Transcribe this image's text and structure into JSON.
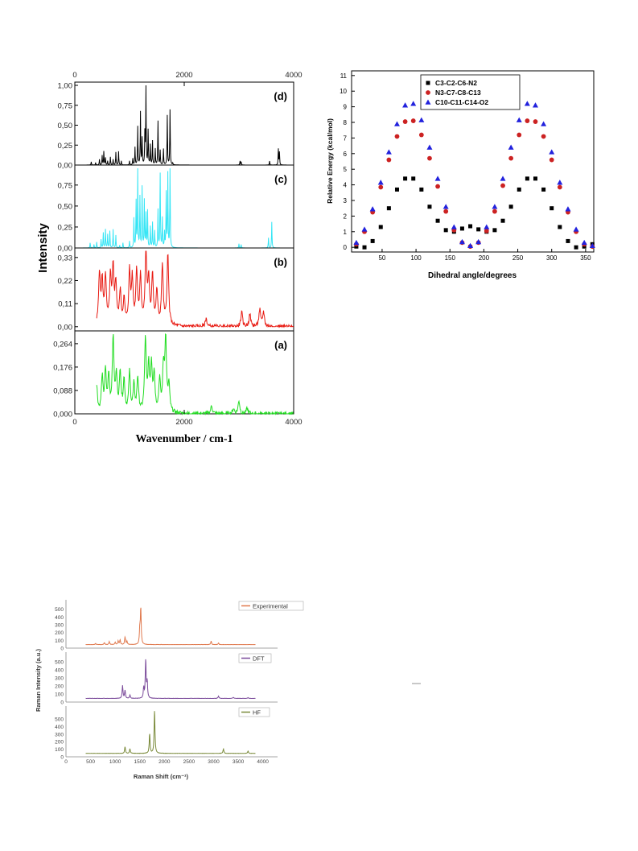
{
  "chart_data": [
    {
      "type": "line",
      "ylabel": "Intensity",
      "xlabel": "Wavenumber / cm-1",
      "xlim": [
        0,
        4000
      ],
      "x_ticks": [
        "0",
        "2000",
        "4000"
      ],
      "top_x_ticks": [
        "0",
        "2000",
        "4000"
      ],
      "panels": [
        {
          "label": "(d)",
          "color": "#000000",
          "ylim": [
            0,
            1.0
          ],
          "y_ticks": [
            "0,00",
            "0,25",
            "0,50",
            "0,75",
            "1,00"
          ],
          "peaks": [
            [
              300,
              0.04
            ],
            [
              380,
              0.03
            ],
            [
              450,
              0.07
            ],
            [
              500,
              0.12
            ],
            [
              530,
              0.17
            ],
            [
              560,
              0.09
            ],
            [
              600,
              0.05
            ],
            [
              650,
              0.1
            ],
            [
              700,
              0.07
            ],
            [
              750,
              0.16
            ],
            [
              800,
              0.17
            ],
            [
              850,
              0.05
            ],
            [
              1000,
              0.05
            ],
            [
              1060,
              0.08
            ],
            [
              1100,
              0.22
            ],
            [
              1150,
              0.48
            ],
            [
              1200,
              0.66
            ],
            [
              1230,
              0.33
            ],
            [
              1280,
              0.39
            ],
            [
              1300,
              1.0
            ],
            [
              1340,
              0.43
            ],
            [
              1380,
              0.25
            ],
            [
              1420,
              0.3
            ],
            [
              1470,
              0.2
            ],
            [
              1520,
              0.55
            ],
            [
              1560,
              0.18
            ],
            [
              1620,
              0.2
            ],
            [
              1690,
              0.62
            ],
            [
              1740,
              0.69
            ],
            [
              1790,
              0.02
            ],
            [
              3020,
              0.05
            ],
            [
              3040,
              0.04
            ],
            [
              3560,
              0.05
            ],
            [
              3720,
              0.2
            ],
            [
              3740,
              0.16
            ]
          ]
        },
        {
          "label": "(c)",
          "color": "#33e5f5",
          "ylim": [
            0,
            0.95
          ],
          "y_ticks": [
            "0,00",
            "0,25",
            "0,50",
            "0,75"
          ],
          "peaks": [
            [
              280,
              0.06
            ],
            [
              350,
              0.04
            ],
            [
              400,
              0.07
            ],
            [
              480,
              0.1
            ],
            [
              520,
              0.18
            ],
            [
              560,
              0.22
            ],
            [
              600,
              0.16
            ],
            [
              640,
              0.2
            ],
            [
              700,
              0.22
            ],
            [
              750,
              0.15
            ],
            [
              820,
              0.03
            ],
            [
              880,
              0.06
            ],
            [
              1000,
              0.08
            ],
            [
              1080,
              0.35
            ],
            [
              1120,
              0.55
            ],
            [
              1150,
              0.93
            ],
            [
              1190,
              0.6
            ],
            [
              1230,
              0.72
            ],
            [
              1270,
              0.56
            ],
            [
              1300,
              0.4
            ],
            [
              1330,
              0.44
            ],
            [
              1380,
              0.25
            ],
            [
              1420,
              0.3
            ],
            [
              1460,
              0.2
            ],
            [
              1520,
              0.45
            ],
            [
              1560,
              0.88
            ],
            [
              1600,
              0.35
            ],
            [
              1640,
              0.18
            ],
            [
              1670,
              0.65
            ],
            [
              1700,
              0.88
            ],
            [
              1740,
              0.93
            ],
            [
              3000,
              0.05
            ],
            [
              3040,
              0.04
            ],
            [
              3540,
              0.12
            ],
            [
              3600,
              0.31
            ]
          ]
        },
        {
          "label": "(b)",
          "color": "#e81a12",
          "ylim": [
            -0.02,
            0.36
          ],
          "y_ticks": [
            "0,00",
            "0,11",
            "0,22",
            "0,33"
          ],
          "peaks": [
            [
              450,
              0.25
            ],
            [
              500,
              0.2
            ],
            [
              560,
              0.23
            ],
            [
              650,
              0.22
            ],
            [
              700,
              0.26
            ],
            [
              750,
              0.19
            ],
            [
              830,
              0.16
            ],
            [
              900,
              0.12
            ],
            [
              1000,
              0.25
            ],
            [
              1050,
              0.21
            ],
            [
              1130,
              0.26
            ],
            [
              1200,
              0.23
            ],
            [
              1300,
              0.35
            ],
            [
              1350,
              0.2
            ],
            [
              1420,
              0.24
            ],
            [
              1500,
              0.16
            ],
            [
              1600,
              0.29
            ],
            [
              1700,
              0.34
            ],
            [
              2400,
              0.04
            ],
            [
              3050,
              0.07
            ],
            [
              3200,
              0.06
            ],
            [
              3380,
              0.08
            ],
            [
              3450,
              0.07
            ]
          ],
          "baseline_tail": 0.0
        },
        {
          "label": "(a)",
          "color": "#22dd22",
          "ylim": [
            0,
            0.3
          ],
          "y_ticks": [
            "0,000",
            "0,088",
            "0,176",
            "0,264"
          ],
          "peaks": [
            [
              400,
              0.1
            ],
            [
              500,
              0.13
            ],
            [
              560,
              0.15
            ],
            [
              620,
              0.13
            ],
            [
              700,
              0.28
            ],
            [
              760,
              0.13
            ],
            [
              830,
              0.15
            ],
            [
              900,
              0.12
            ],
            [
              1000,
              0.15
            ],
            [
              1080,
              0.1
            ],
            [
              1150,
              0.13
            ],
            [
              1290,
              0.27
            ],
            [
              1350,
              0.16
            ],
            [
              1400,
              0.17
            ],
            [
              1450,
              0.14
            ],
            [
              1550,
              0.12
            ],
            [
              1620,
              0.16
            ],
            [
              1660,
              0.27
            ],
            [
              1720,
              0.1
            ],
            [
              2500,
              0.03
            ],
            [
              2900,
              0.02
            ],
            [
              3000,
              0.05
            ],
            [
              3150,
              0.02
            ]
          ]
        }
      ]
    },
    {
      "type": "scatter",
      "ylabel": "Relative Energy (kcal/mol)",
      "xlabel": "Dihedral angle/degrees",
      "xlim": [
        5,
        362
      ],
      "ylim": [
        -0.3,
        11.3
      ],
      "x_ticks": [
        50,
        100,
        150,
        200,
        250,
        300,
        350
      ],
      "y_ticks": [
        0,
        1,
        2,
        3,
        4,
        5,
        6,
        7,
        8,
        9,
        10,
        11
      ],
      "series": [
        {
          "name": "C3-C2-C6-N2",
          "marker": "square",
          "color": "#000000",
          "x": [
            12,
            24,
            36,
            48,
            60,
            72,
            84,
            96,
            108,
            120,
            132,
            144,
            156,
            168,
            180,
            192,
            204,
            216,
            228,
            240,
            252,
            264,
            276,
            288,
            300,
            312,
            324,
            336,
            348,
            360
          ],
          "y": [
            0.05,
            0.0,
            0.4,
            1.3,
            2.5,
            3.7,
            4.4,
            4.4,
            3.7,
            2.6,
            1.7,
            1.1,
            1.0,
            1.2,
            1.35,
            1.15,
            1.0,
            1.1,
            1.7,
            2.6,
            3.7,
            4.4,
            4.4,
            3.7,
            2.5,
            1.3,
            0.4,
            0.0,
            0.05,
            0.2
          ]
        },
        {
          "name": "N3-C7-C8-C13",
          "marker": "circle",
          "color": "#cc2222",
          "x": [
            12,
            24,
            36,
            48,
            60,
            72,
            84,
            96,
            108,
            120,
            132,
            144,
            156,
            168,
            180,
            192,
            204,
            216,
            228,
            240,
            252,
            264,
            276,
            288,
            300,
            312,
            324,
            336,
            348,
            360
          ],
          "y": [
            0.2,
            1.0,
            2.25,
            3.85,
            5.6,
            7.1,
            8.05,
            8.1,
            7.2,
            5.7,
            3.9,
            2.3,
            1.1,
            0.3,
            0.05,
            0.3,
            1.05,
            2.3,
            3.95,
            5.7,
            7.2,
            8.1,
            8.05,
            7.1,
            5.6,
            3.85,
            2.25,
            1.0,
            0.2,
            0.05
          ]
        },
        {
          "name": "C10-C11-C14-O2",
          "marker": "triangle",
          "color": "#2222dd",
          "x": [
            12,
            24,
            36,
            48,
            60,
            72,
            84,
            96,
            108,
            120,
            132,
            144,
            156,
            168,
            180,
            192,
            204,
            216,
            228,
            240,
            252,
            264,
            276,
            288,
            300,
            312,
            324,
            336,
            348,
            360
          ],
          "y": [
            0.3,
            1.15,
            2.45,
            4.15,
            6.1,
            7.9,
            9.1,
            9.2,
            8.15,
            6.4,
            4.4,
            2.6,
            1.3,
            0.35,
            0.1,
            0.35,
            1.3,
            2.6,
            4.4,
            6.4,
            8.15,
            9.2,
            9.1,
            7.9,
            6.1,
            4.15,
            2.45,
            1.15,
            0.3,
            0.1
          ]
        }
      ]
    },
    {
      "type": "line",
      "ylabel": "Raman Intensity (a.u.)",
      "xlabel": "Raman Shift (cm⁻¹)",
      "xlim": [
        0,
        4300
      ],
      "x_ticks": [
        0,
        500,
        1000,
        1500,
        2000,
        2500,
        3000,
        3500,
        4000
      ],
      "panels": [
        {
          "name": "Experimental",
          "color": "#e07a4f",
          "ylim": [
            0,
            600
          ],
          "y_ticks": [
            0,
            100,
            200,
            300,
            400,
            500
          ],
          "range": [
            400,
            3850
          ],
          "base": 45,
          "peaks": [
            [
              600,
              15
            ],
            [
              780,
              25
            ],
            [
              880,
              40
            ],
            [
              1000,
              30
            ],
            [
              1060,
              45
            ],
            [
              1100,
              60
            ],
            [
              1200,
              100
            ],
            [
              1240,
              40
            ],
            [
              1500,
              180
            ],
            [
              1520,
              460
            ],
            [
              2950,
              45
            ],
            [
              3100,
              20
            ]
          ]
        },
        {
          "name": "DFT",
          "color": "#7a4a9a",
          "ylim": [
            0,
            600
          ],
          "y_ticks": [
            0,
            100,
            200,
            300,
            400,
            500
          ],
          "range": [
            400,
            3850
          ],
          "base": 45,
          "peaks": [
            [
              1150,
              160
            ],
            [
              1200,
              100
            ],
            [
              1300,
              40
            ],
            [
              1580,
              130
            ],
            [
              1620,
              480
            ],
            [
              1650,
              200
            ],
            [
              3100,
              30
            ],
            [
              3400,
              15
            ],
            [
              3700,
              10
            ]
          ]
        },
        {
          "name": "HF",
          "color": "#7a8a3a",
          "ylim": [
            0,
            650
          ],
          "y_ticks": [
            0,
            100,
            200,
            300,
            400,
            500
          ],
          "range": [
            400,
            3850
          ],
          "base": 45,
          "peaks": [
            [
              1200,
              90
            ],
            [
              1300,
              60
            ],
            [
              1700,
              260
            ],
            [
              1800,
              580
            ],
            [
              3200,
              60
            ],
            [
              3700,
              30
            ]
          ]
        }
      ]
    }
  ]
}
